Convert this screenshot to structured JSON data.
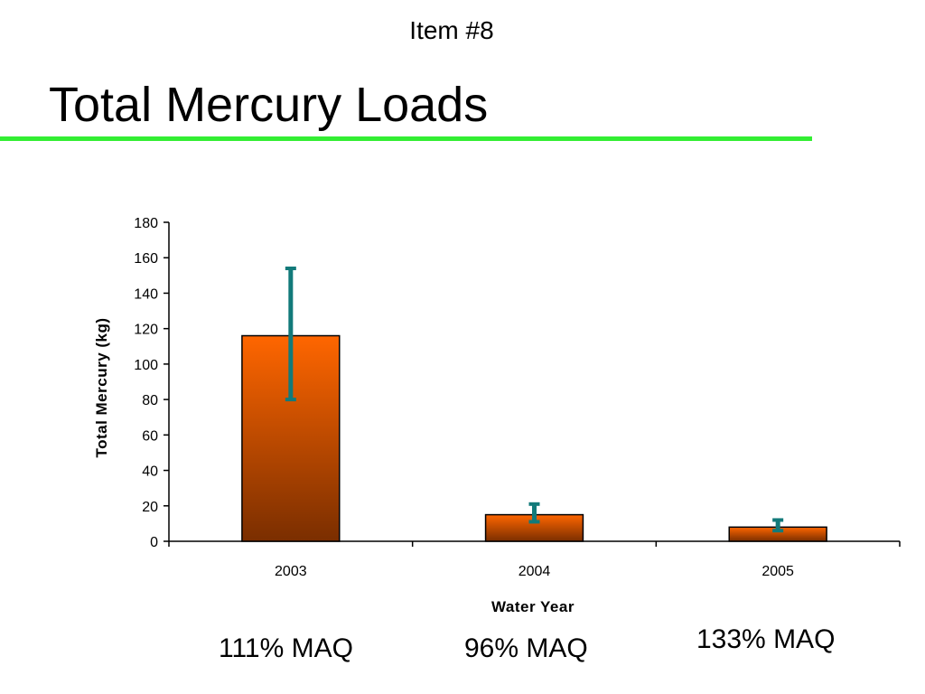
{
  "slide": {
    "item_label": "Item #8",
    "title": "Total Mercury Loads"
  },
  "colors": {
    "title_rule": "#33ee33",
    "bar_top": "#ff6600",
    "bar_bottom": "#7a2e00",
    "bar_outline": "#000000",
    "error_bar": "#127a7a",
    "axis": "#000000"
  },
  "chart_data": {
    "type": "bar",
    "title": "",
    "xlabel": "Water Year",
    "ylabel": "Total Mercury (kg)",
    "categories": [
      "2003",
      "2004",
      "2005"
    ],
    "values": [
      116,
      15,
      8
    ],
    "error_bars": [
      {
        "low": 80,
        "high": 154
      },
      {
        "low": 11,
        "high": 21
      },
      {
        "low": 6,
        "high": 12
      }
    ],
    "ylim": [
      0,
      180
    ],
    "y_ticks": [
      0,
      20,
      40,
      60,
      80,
      100,
      120,
      140,
      160,
      180
    ],
    "grid": false,
    "legend": "none"
  },
  "annotations": [
    "111% MAQ",
    "96% MAQ",
    "133% MAQ"
  ]
}
